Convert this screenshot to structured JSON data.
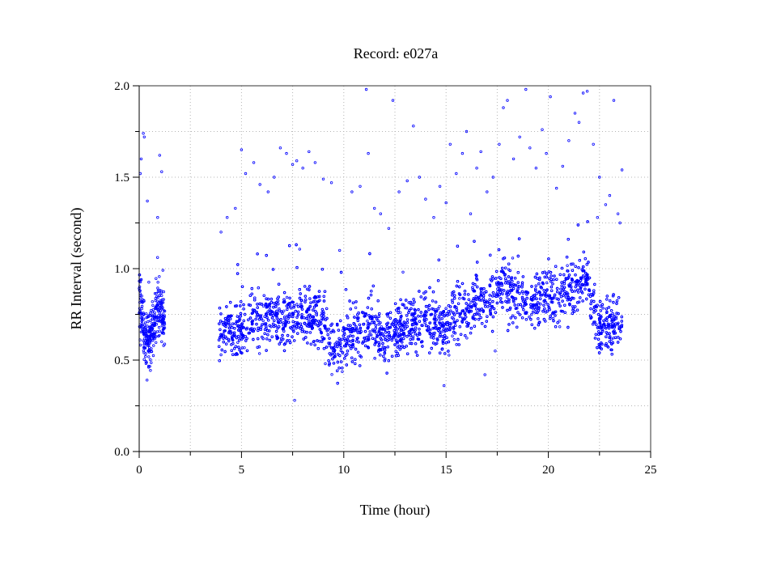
{
  "chart_data": {
    "type": "scatter",
    "title": "Record:  e027a",
    "xlabel": "Time (hour)",
    "ylabel": "RR Interval (second)",
    "xlim": [
      0,
      25
    ],
    "ylim": [
      0,
      2
    ],
    "x_ticks": [
      0,
      5,
      10,
      15,
      20,
      25
    ],
    "x_tick_labels": [
      "0",
      "5",
      "10",
      "15",
      "20",
      "25"
    ],
    "x_minor_ticks": [
      2.5,
      7.5,
      12.5,
      17.5,
      22.5
    ],
    "y_ticks": [
      0,
      0.5,
      1.0,
      1.5,
      2.0
    ],
    "y_tick_labels": [
      "0.0",
      "0.5",
      "1.0",
      "1.5",
      "2.0"
    ],
    "y_minor_ticks": [
      0.25,
      0.75,
      1.25,
      1.75
    ],
    "grid": true,
    "legend": "none",
    "marker": "open-circle",
    "series_color": "#0000ff",
    "segments": [
      {
        "start": 0.0,
        "end": 1.25
      },
      {
        "start": 3.9,
        "end": 23.6
      }
    ],
    "trend": {
      "x": [
        0.0,
        0.1,
        0.3,
        0.5,
        0.7,
        0.9,
        1.1,
        1.25,
        3.9,
        4.5,
        5.0,
        5.5,
        6.0,
        6.5,
        7.0,
        7.5,
        8.0,
        8.5,
        9.0,
        9.3,
        9.6,
        10.0,
        10.5,
        11.0,
        11.5,
        12.0,
        12.5,
        13.0,
        13.5,
        14.0,
        14.5,
        15.0,
        15.5,
        16.0,
        16.5,
        17.0,
        17.5,
        17.8,
        18.0,
        18.5,
        19.0,
        19.5,
        20.0,
        20.5,
        21.0,
        21.5,
        21.8,
        22.2,
        22.5,
        23.0,
        23.6
      ],
      "y": [
        0.8,
        0.75,
        0.62,
        0.6,
        0.68,
        0.8,
        0.75,
        0.72,
        0.65,
        0.66,
        0.68,
        0.7,
        0.72,
        0.74,
        0.72,
        0.73,
        0.75,
        0.74,
        0.72,
        0.6,
        0.55,
        0.6,
        0.65,
        0.68,
        0.7,
        0.6,
        0.65,
        0.68,
        0.7,
        0.72,
        0.7,
        0.68,
        0.78,
        0.8,
        0.83,
        0.82,
        0.85,
        0.95,
        0.86,
        0.84,
        0.82,
        0.83,
        0.85,
        0.84,
        0.88,
        0.92,
        0.97,
        0.8,
        0.7,
        0.68,
        0.7
      ]
    },
    "outliers": {
      "x": [
        0.05,
        0.1,
        0.2,
        0.25,
        0.4,
        0.9,
        1.0,
        1.1,
        4.0,
        4.3,
        4.7,
        5.0,
        5.2,
        5.6,
        5.9,
        6.3,
        6.6,
        6.9,
        7.2,
        7.5,
        7.7,
        8.0,
        8.3,
        8.6,
        9.0,
        9.4,
        9.8,
        10.4,
        10.8,
        11.1,
        11.2,
        11.5,
        11.8,
        12.2,
        12.4,
        12.7,
        13.1,
        13.4,
        13.7,
        14.0,
        14.4,
        14.7,
        15.0,
        15.2,
        15.5,
        15.8,
        16.0,
        16.2,
        16.5,
        16.7,
        17.0,
        17.3,
        17.6,
        17.8,
        18.0,
        18.3,
        18.6,
        18.9,
        19.1,
        19.4,
        19.7,
        19.9,
        20.1,
        20.4,
        20.7,
        21.0,
        21.3,
        21.5,
        21.7,
        21.9,
        22.2,
        22.5,
        22.8,
        23.0,
        23.2,
        23.4,
        23.6,
        23.5,
        22.4,
        17.4,
        7.6,
        9.1,
        14.9,
        16.9
      ],
      "y": [
        1.52,
        1.6,
        1.74,
        1.72,
        1.37,
        1.28,
        1.62,
        1.53,
        1.2,
        1.28,
        1.33,
        1.65,
        1.52,
        1.58,
        1.46,
        1.42,
        1.5,
        1.66,
        1.63,
        1.57,
        1.59,
        1.55,
        1.64,
        1.58,
        1.49,
        1.47,
        1.1,
        1.42,
        1.45,
        1.98,
        1.63,
        1.33,
        1.3,
        1.22,
        1.92,
        1.42,
        1.48,
        1.78,
        1.5,
        1.38,
        1.28,
        1.45,
        1.36,
        1.68,
        1.52,
        1.63,
        1.75,
        1.3,
        1.55,
        1.64,
        1.42,
        1.5,
        1.68,
        1.88,
        1.92,
        1.6,
        1.72,
        1.98,
        1.66,
        1.55,
        1.76,
        1.63,
        1.94,
        1.44,
        1.56,
        1.7,
        1.85,
        1.8,
        1.96,
        1.97,
        1.68,
        1.5,
        1.35,
        1.4,
        1.92,
        1.3,
        1.54,
        1.25,
        1.28,
        0.55,
        0.28,
        0.48,
        0.36,
        0.42
      ]
    }
  }
}
